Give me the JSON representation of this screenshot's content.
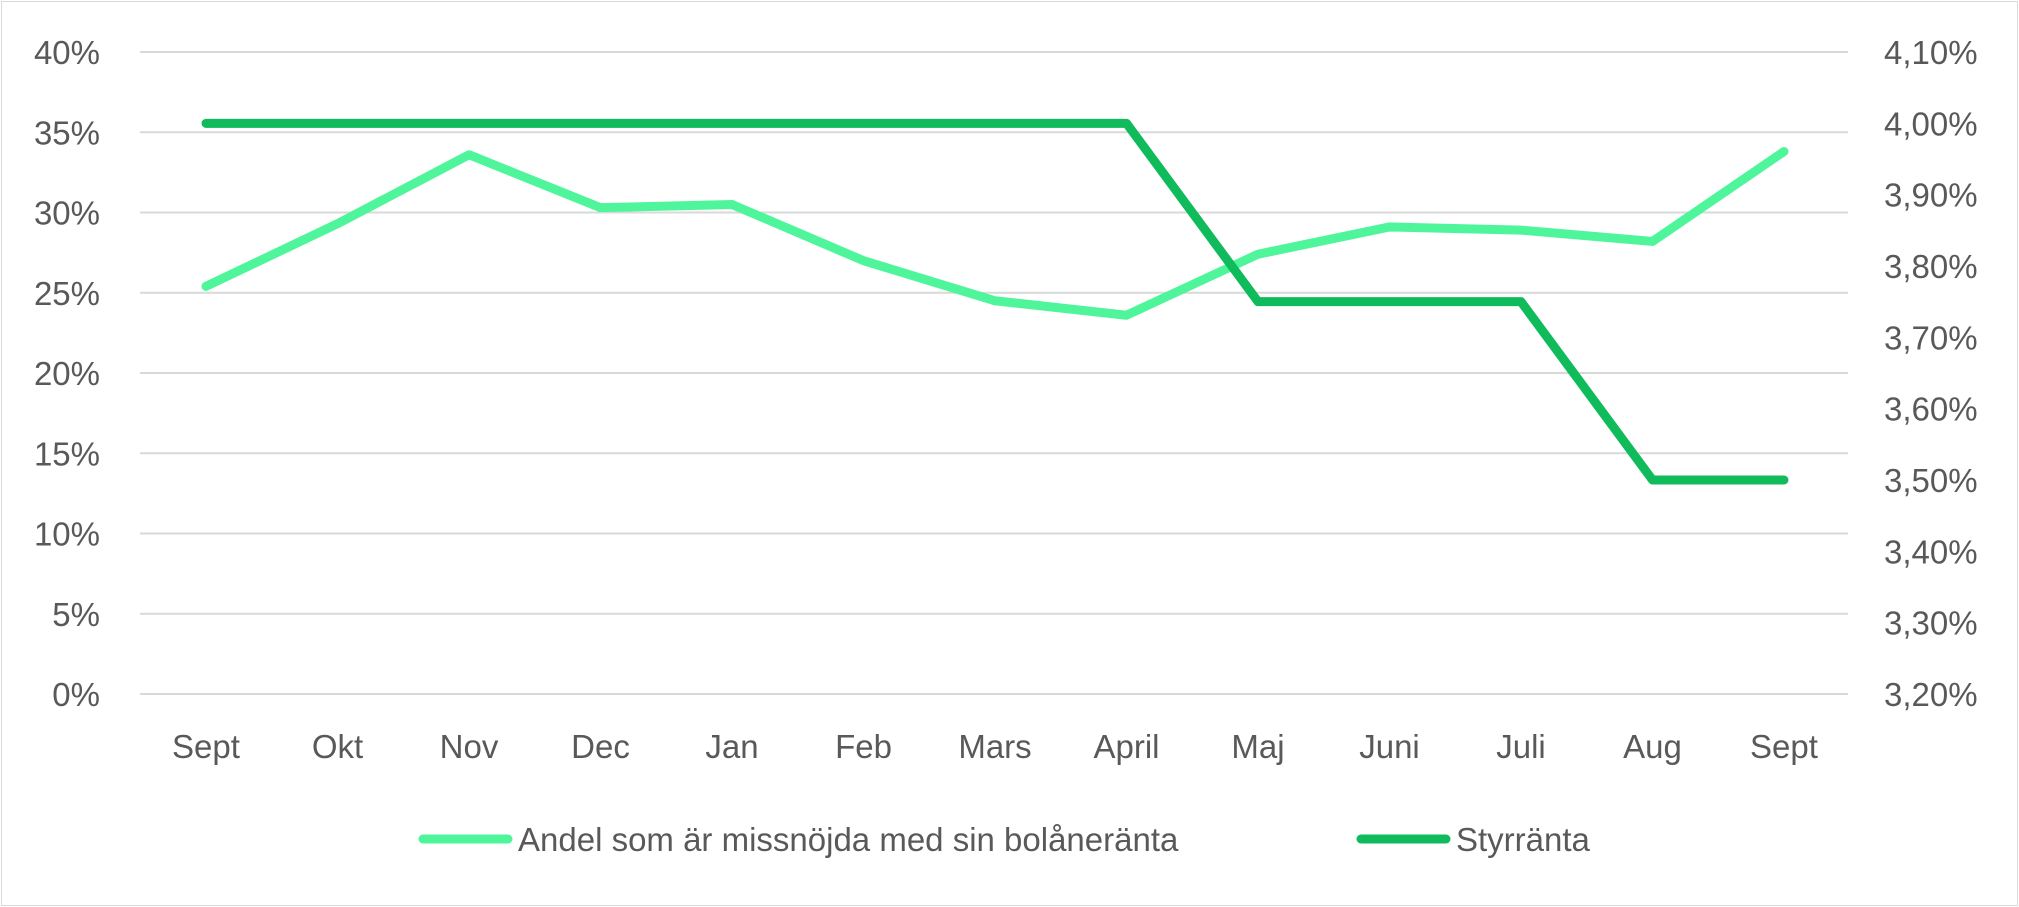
{
  "chart_data": {
    "type": "line",
    "categories": [
      "Sept",
      "Okt",
      "Nov",
      "Dec",
      "Jan",
      "Feb",
      "Mars",
      "April",
      "Maj",
      "Juni",
      "Juli",
      "Aug",
      "Sept"
    ],
    "y_left": {
      "ticks": [
        "0%",
        "5%",
        "10%",
        "15%",
        "20%",
        "25%",
        "30%",
        "35%",
        "40%"
      ],
      "ylim": [
        0,
        40
      ]
    },
    "y_right": {
      "ticks": [
        "3,20%",
        "3,30%",
        "3,40%",
        "3,50%",
        "3,60%",
        "3,70%",
        "3,80%",
        "3,90%",
        "4,00%",
        "4,10%"
      ],
      "ylim": [
        3.2,
        4.1
      ]
    },
    "grid": true,
    "legend_position": "bottom",
    "series": [
      {
        "name": "Andel som är missnöjda med sin bolåneränta",
        "axis": "left",
        "color": "#4ff59a",
        "values": [
          25.4,
          29.3,
          33.6,
          30.3,
          30.5,
          27.0,
          24.5,
          23.6,
          27.4,
          29.1,
          28.9,
          28.2,
          33.8
        ]
      },
      {
        "name": "Styrränta",
        "axis": "right",
        "color": "#10bb5c",
        "values": [
          4.0,
          4.0,
          4.0,
          4.0,
          4.0,
          4.0,
          4.0,
          4.0,
          3.75,
          3.75,
          3.75,
          3.5,
          3.5
        ]
      }
    ],
    "gridline_color": "#d9d9d9"
  }
}
